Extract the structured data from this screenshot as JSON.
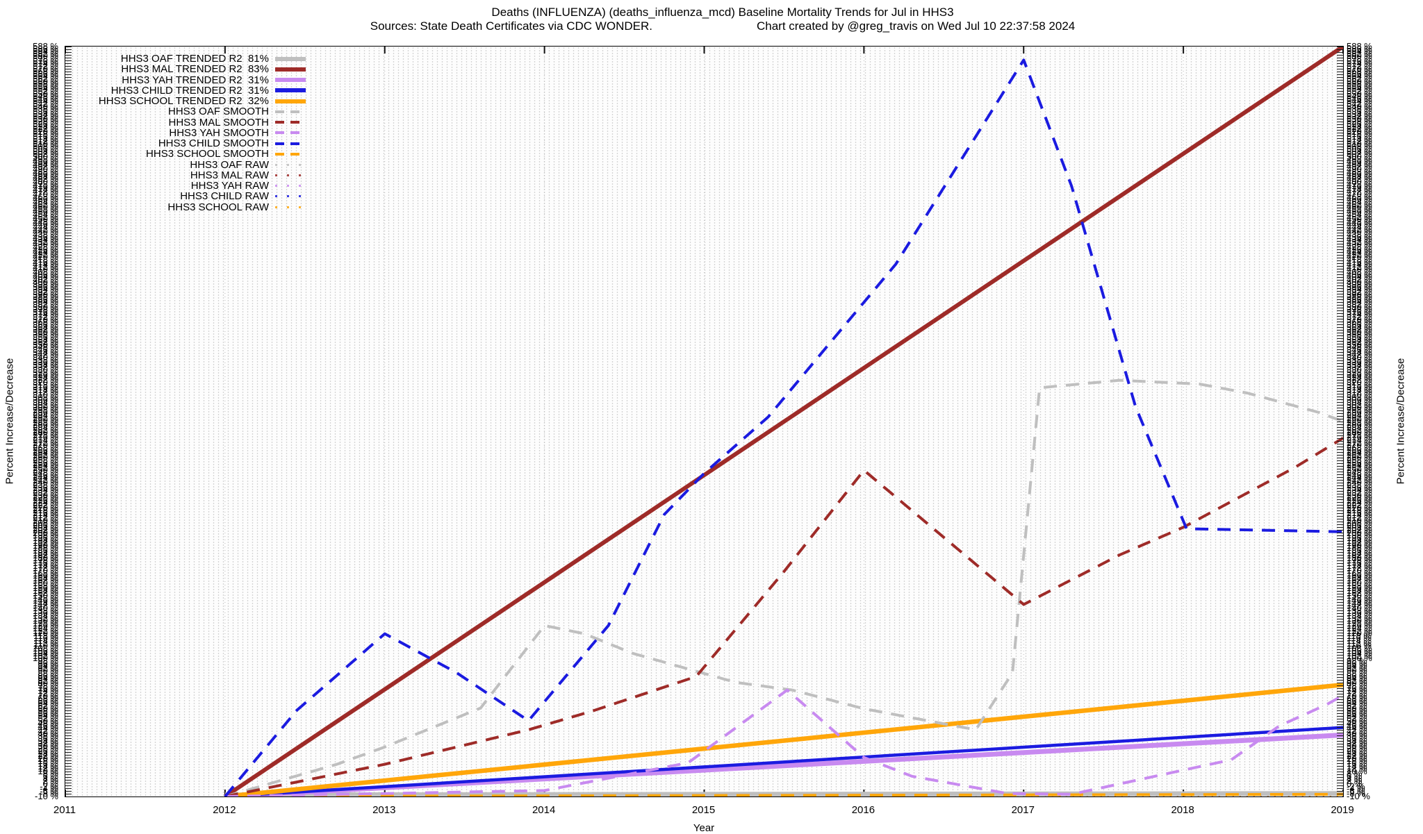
{
  "title": "Deaths (INFLUENZA) (deaths_influenza_mcd)  Baseline Mortality Trends for Jul in HHS3",
  "subtitle_left": "Sources: State Death Certificates via CDC WONDER.",
  "subtitle_right": "Chart created by @greg_travis on Wed Jul 10 22:37:58 2024",
  "axes": {
    "x_title": "Year",
    "x_ticks": [
      2011,
      2012,
      2013,
      2014,
      2015,
      2016,
      2017,
      2018,
      2019
    ],
    "y_title_left": "Percent Increase/Decrease",
    "y_title_right": "Percent Increase/Decrease",
    "y_bottom_label": "-10 %",
    "y_smudge": {
      "min": -10,
      "step": 2,
      "count": 300,
      "suffix": " %",
      "note": "y-axis tick labels are so dense they overlap into an illegible black smudge on both sides; only the bottom '-10 %' is readable"
    }
  },
  "legend": {
    "items": [
      {
        "label": "HHS3 OAF TRENDED R2  81%",
        "series": "oaf_trended"
      },
      {
        "label": "HHS3 MAL TRENDED R2  83%",
        "series": "mal_trended"
      },
      {
        "label": "HHS3 YAH TRENDED R2  31%",
        "series": "yah_trended"
      },
      {
        "label": "HHS3 CHILD TRENDED R2  31%",
        "series": "child_trended"
      },
      {
        "label": "HHS3 SCHOOL TRENDED R2  32%",
        "series": "school_trended"
      },
      {
        "label": "HHS3 OAF SMOOTH",
        "series": "oaf_smooth"
      },
      {
        "label": "HHS3 MAL SMOOTH",
        "series": "mal_smooth"
      },
      {
        "label": "HHS3 YAH SMOOTH",
        "series": "yah_smooth"
      },
      {
        "label": "HHS3 CHILD SMOOTH",
        "series": "child_smooth"
      },
      {
        "label": "HHS3 SCHOOL SMOOTH",
        "series": "school_smooth"
      },
      {
        "label": "HHS3 OAF RAW",
        "series": "oaf_raw"
      },
      {
        "label": "HHS3 MAL RAW",
        "series": "mal_raw"
      },
      {
        "label": "HHS3 YAH RAW",
        "series": "yah_raw"
      },
      {
        "label": "HHS3 CHILD RAW",
        "series": "child_raw"
      },
      {
        "label": "HHS3 SCHOOL RAW",
        "series": "school_raw"
      }
    ]
  },
  "colors": {
    "oaf": "#bfbfbf",
    "mal": "#9e2b28",
    "yah": "#c88af0",
    "child": "#1b1be0",
    "school": "#ffa60a"
  },
  "chart_data": {
    "type": "line",
    "title": "Deaths (INFLUENZA) (deaths_influenza_mcd)  Baseline Mortality Trends for Jul in HHS3",
    "xlabel": "Year",
    "ylabel": "Percent Increase/Decrease",
    "xlim": [
      2011,
      2019
    ],
    "grid": "dense dotted",
    "legend_position": "top-left, no frame",
    "y_unit_note": "y values are fractions of plot height (0 = bottom tick '-10 %', 1 = top); absolute y-axis values unreadable because tick labels overlap into a smudge",
    "series": [
      {
        "id": "oaf_raw",
        "name": "HHS3 OAF RAW",
        "color_key": "oaf",
        "style": "dotted",
        "width": 2.5,
        "points": [
          [
            2012,
            0.001
          ],
          [
            2019,
            0.001
          ]
        ]
      },
      {
        "id": "mal_raw",
        "name": "HHS3 MAL RAW",
        "color_key": "mal",
        "style": "dotted",
        "width": 2.5,
        "points": [
          [
            2012,
            0.001
          ],
          [
            2019,
            0.001
          ]
        ]
      },
      {
        "id": "yah_raw",
        "name": "HHS3 YAH RAW",
        "color_key": "yah",
        "style": "dotted",
        "width": 2.5,
        "points": [
          [
            2012,
            0.001
          ],
          [
            2019,
            0.001
          ]
        ]
      },
      {
        "id": "child_raw",
        "name": "HHS3 CHILD RAW",
        "color_key": "child",
        "style": "dotted",
        "width": 2.5,
        "points": [
          [
            2012,
            0.001
          ],
          [
            2019,
            0.001
          ]
        ]
      },
      {
        "id": "school_raw",
        "name": "HHS3 SCHOOL RAW",
        "color_key": "school",
        "style": "dotted",
        "width": 2.5,
        "points": [
          [
            2012,
            0.001
          ],
          [
            2019,
            0.001
          ]
        ]
      },
      {
        "id": "oaf_trended",
        "name": "HHS3 OAF TRENDED R2 81%",
        "color_key": "oaf",
        "style": "solid",
        "width": 7,
        "points": [
          [
            2012,
            0.002
          ],
          [
            2019,
            0.004
          ]
        ]
      },
      {
        "id": "yah_trended",
        "name": "HHS3 YAH TRENDED R2 31%",
        "color_key": "yah",
        "style": "solid",
        "width": 7,
        "points": [
          [
            2012,
            0.0
          ],
          [
            2019,
            0.082
          ]
        ]
      },
      {
        "id": "child_trended",
        "name": "HHS3 CHILD TRENDED R2 31%",
        "color_key": "child",
        "style": "solid",
        "width": 4.5,
        "points": [
          [
            2012,
            0.0
          ],
          [
            2019,
            0.092
          ]
        ]
      },
      {
        "id": "school_trended",
        "name": "HHS3 SCHOOL TRENDED R2 32%",
        "color_key": "school",
        "style": "solid",
        "width": 6.5,
        "points": [
          [
            2012,
            0.0
          ],
          [
            2019,
            0.149
          ]
        ]
      },
      {
        "id": "mal_trended",
        "name": "HHS3 MAL TRENDED R2 83%",
        "color_key": "mal",
        "style": "solid",
        "width": 6,
        "points": [
          [
            2012,
            0.0
          ],
          [
            2019,
            1.0
          ]
        ]
      },
      {
        "id": "school_smooth",
        "name": "HHS3 SCHOOL SMOOTH",
        "color_key": "school",
        "style": "dashed",
        "width": 4,
        "points": [
          [
            2012,
            0.0
          ],
          [
            2019,
            0.003
          ]
        ]
      },
      {
        "id": "oaf_smooth",
        "name": "HHS3 OAF SMOOTH",
        "color_key": "oaf",
        "style": "dashed",
        "width": 4,
        "points": [
          [
            2012,
            0.0
          ],
          [
            2012.7,
            0.043
          ],
          [
            2013,
            0.066
          ],
          [
            2013.6,
            0.118
          ],
          [
            2014,
            0.228
          ],
          [
            2014.25,
            0.217
          ],
          [
            2014.55,
            0.191
          ],
          [
            2015.2,
            0.152
          ],
          [
            2015.55,
            0.142
          ],
          [
            2016,
            0.117
          ],
          [
            2016.7,
            0.089
          ],
          [
            2016.93,
            0.165
          ],
          [
            2017.1,
            0.545
          ],
          [
            2017.6,
            0.555
          ],
          [
            2018.1,
            0.55
          ],
          [
            2018.4,
            0.538
          ],
          [
            2018.85,
            0.512
          ],
          [
            2019,
            0.5
          ]
        ]
      },
      {
        "id": "mal_smooth",
        "name": "HHS3 MAL SMOOTH",
        "color_key": "mal",
        "style": "dashed",
        "width": 4,
        "points": [
          [
            2012,
            0.0
          ],
          [
            2013,
            0.043
          ],
          [
            2013.9,
            0.089
          ],
          [
            2014.3,
            0.114
          ],
          [
            2014.95,
            0.16
          ],
          [
            2015.5,
            0.3
          ],
          [
            2016,
            0.435
          ],
          [
            2017,
            0.256
          ],
          [
            2017.6,
            0.322
          ],
          [
            2018,
            0.359
          ],
          [
            2018.7,
            0.439
          ],
          [
            2019,
            0.478
          ]
        ]
      },
      {
        "id": "yah_smooth",
        "name": "HHS3 YAH SMOOTH",
        "color_key": "yah",
        "style": "dashed",
        "width": 4,
        "points": [
          [
            2012,
            0.0
          ],
          [
            2013,
            0.004
          ],
          [
            2014,
            0.008
          ],
          [
            2014.9,
            0.045
          ],
          [
            2015.52,
            0.142
          ],
          [
            2016,
            0.052
          ],
          [
            2016.3,
            0.027
          ],
          [
            2016.9,
            0.004
          ],
          [
            2017.3,
            0.003
          ],
          [
            2018.3,
            0.049
          ],
          [
            2018.6,
            0.094
          ],
          [
            2018.9,
            0.123
          ],
          [
            2019,
            0.135
          ]
        ]
      },
      {
        "id": "child_smooth",
        "name": "HHS3 CHILD SMOOTH",
        "color_key": "child",
        "style": "dashed",
        "width": 4,
        "points": [
          [
            2012,
            0.0
          ],
          [
            2012.45,
            0.115
          ],
          [
            2013,
            0.217
          ],
          [
            2013.45,
            0.165
          ],
          [
            2013.9,
            0.101
          ],
          [
            2014.4,
            0.228
          ],
          [
            2014.75,
            0.376
          ],
          [
            2015,
            0.431
          ],
          [
            2015.4,
            0.506
          ],
          [
            2016.2,
            0.71
          ],
          [
            2017,
            0.982
          ],
          [
            2017.3,
            0.814
          ],
          [
            2017.7,
            0.52
          ],
          [
            2018.02,
            0.357
          ],
          [
            2019,
            0.353
          ]
        ]
      }
    ]
  }
}
